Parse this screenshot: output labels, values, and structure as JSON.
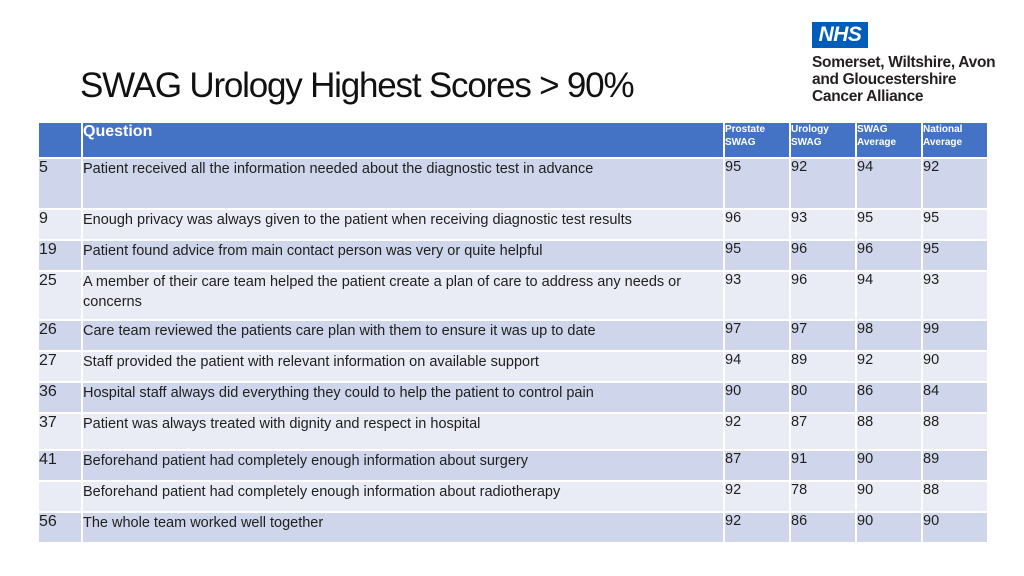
{
  "title": "SWAG Urology Highest Scores > 90%",
  "logo": {
    "nhs": "NHS",
    "lines": [
      "Somerset, Wiltshire, Avon",
      "and Gloucestershire",
      "Cancer Alliance"
    ]
  },
  "table": {
    "headers": {
      "question": "Question",
      "prostate": [
        "Prostate",
        "SWAG"
      ],
      "urology": [
        "Urology",
        "SWAG"
      ],
      "swag_avg": [
        "SWAG",
        "Average"
      ],
      "national": [
        "National",
        "Average"
      ]
    },
    "rows": [
      {
        "num": "5",
        "question": "Patient received all the information needed about the diagnostic test in advance",
        "prostate": "95",
        "urology": "92",
        "swag": "94",
        "national": "92"
      },
      {
        "num": "9",
        "question": "Enough privacy was always given to the patient when receiving diagnostic test results",
        "prostate": "96",
        "urology": "93",
        "swag": "95",
        "national": "95"
      },
      {
        "num": "19",
        "question": "Patient found advice from main contact person was very or quite helpful",
        "prostate": "95",
        "urology": "96",
        "swag": "96",
        "national": "95"
      },
      {
        "num": "25",
        "question": "A member of their care team helped the patient create a plan of care to address any needs or concerns",
        "prostate": "93",
        "urology": "96",
        "swag": "94",
        "national": "93"
      },
      {
        "num": "26",
        "question": "Care team reviewed the patients care plan with them to ensure it was up to date",
        "prostate": "97",
        "urology": "97",
        "swag": "98",
        "national": "99"
      },
      {
        "num": "27",
        "question": "Staff provided the patient with relevant information on available support",
        "prostate": "94",
        "urology": "89",
        "swag": "92",
        "national": "90"
      },
      {
        "num": "36",
        "question": "Hospital staff always did everything they could to help the patient to control pain",
        "prostate": "90",
        "urology": "80",
        "swag": "86",
        "national": "84"
      },
      {
        "num": "37",
        "question": "Patient was always treated with dignity and respect in hospital",
        "prostate": "92",
        "urology": "87",
        "swag": "88",
        "national": "88"
      },
      {
        "num": "41",
        "question": "Beforehand patient had completely enough information about surgery",
        "prostate": "87",
        "urology": "91",
        "swag": "90",
        "national": "89"
      },
      {
        "num": "",
        "question": "Beforehand patient had completely enough information about radiotherapy",
        "prostate": "92",
        "urology": "78",
        "swag": "90",
        "national": "88"
      },
      {
        "num": "56",
        "question": "The whole team worked well together",
        "prostate": "92",
        "urology": "86",
        "swag": "90",
        "national": "90"
      }
    ]
  }
}
